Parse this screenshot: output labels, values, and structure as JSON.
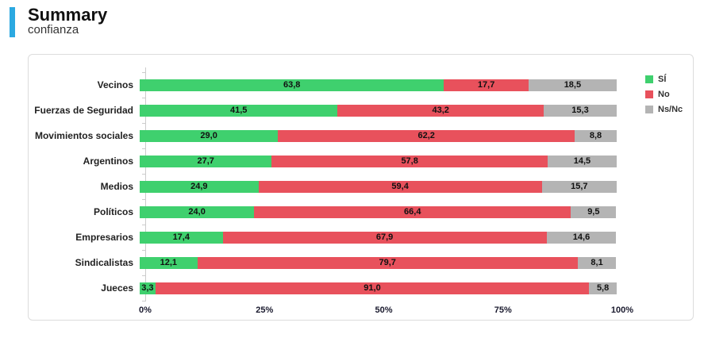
{
  "header": {
    "title": "Summary",
    "subtitle": "confianza",
    "accent_color": "#2BA9E1"
  },
  "chart_data": {
    "type": "bar",
    "orientation": "horizontal",
    "stacked": true,
    "title": "confianza",
    "categories": [
      "Vecinos",
      "Fuerzas de Seguridad",
      "Movimientos sociales",
      "Argentinos",
      "Medios",
      "Políticos",
      "Empresarios",
      "Sindicalistas",
      "Jueces"
    ],
    "series": [
      {
        "name": "SÍ",
        "color": "#3FD06E",
        "values": [
          63.8,
          41.5,
          29.0,
          27.7,
          24.9,
          24.0,
          17.4,
          12.1,
          3.3
        ]
      },
      {
        "name": "No",
        "color": "#E8515C",
        "values": [
          17.7,
          43.2,
          62.2,
          57.8,
          59.4,
          66.4,
          67.9,
          79.7,
          91.0
        ]
      },
      {
        "name": "Ns/Nc",
        "color": "#B4B4B4",
        "values": [
          18.5,
          15.3,
          8.8,
          14.5,
          15.7,
          9.5,
          14.6,
          8.1,
          5.8
        ]
      }
    ],
    "x_ticks": [
      "0%",
      "25%",
      "50%",
      "75%",
      "100%"
    ],
    "x_tick_positions": [
      0,
      25,
      50,
      75,
      100
    ],
    "xlim": [
      0,
      100
    ],
    "value_label_format": "comma-decimal",
    "legend_position": "top-right",
    "grid": false
  }
}
